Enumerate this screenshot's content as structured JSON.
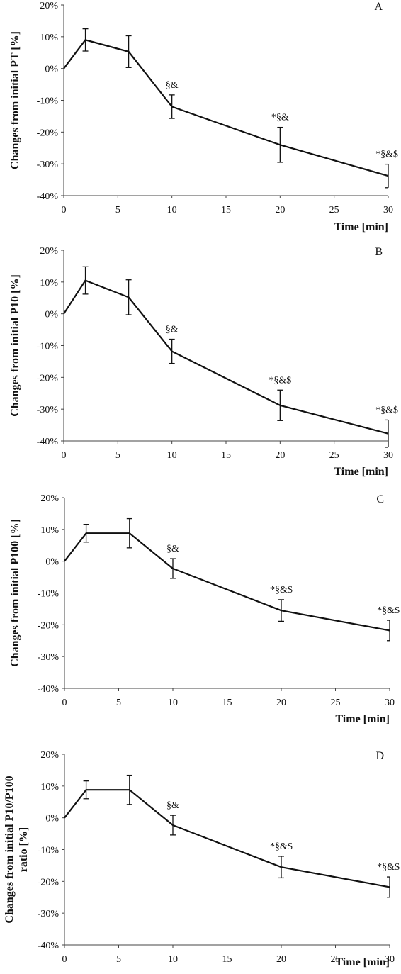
{
  "chart_data": [
    {
      "type": "line",
      "panel_label": "A",
      "xlabel": "Time [min]",
      "ylabel": [
        "Changes from initial PT [%]"
      ],
      "xlim": [
        0,
        30
      ],
      "ylim": [
        -40,
        20
      ],
      "xticks": [
        "0",
        "5",
        "10",
        "15",
        "20",
        "25",
        "30"
      ],
      "yticks": [
        "20%",
        "10%",
        "0%",
        "-10%",
        "-20%",
        "-30%",
        "-40%"
      ],
      "grid": false,
      "x": [
        0,
        2,
        6,
        10,
        20,
        30
      ],
      "y": [
        0,
        9,
        5.3,
        -12,
        -24,
        -33.8
      ],
      "error": [
        0,
        3.5,
        5,
        3.7,
        5.5,
        3.7
      ],
      "annotations": [
        "",
        "",
        "",
        "§&",
        "*§&",
        "*§&$"
      ]
    },
    {
      "type": "line",
      "panel_label": "B",
      "xlabel": "Time [min]",
      "ylabel": [
        "Changes from initial P10 [%]"
      ],
      "xlim": [
        0,
        30
      ],
      "ylim": [
        -40,
        20
      ],
      "xticks": [
        "0",
        "5",
        "10",
        "15",
        "20",
        "25",
        "30"
      ],
      "yticks": [
        "20%",
        "10%",
        "0%",
        "-10%",
        "-20%",
        "-30%",
        "-40%"
      ],
      "grid": false,
      "x": [
        0,
        2,
        6,
        10,
        20,
        30
      ],
      "y": [
        0,
        10.5,
        5.2,
        -11.8,
        -28.8,
        -37.7
      ],
      "error": [
        0,
        4.3,
        5.5,
        3.8,
        4.8,
        4.3
      ],
      "annotations": [
        "",
        "",
        "",
        "§&",
        "*§&$",
        "*§&$"
      ]
    },
    {
      "type": "line",
      "panel_label": "C",
      "xlabel": "Time [min]",
      "ylabel": [
        "Changes from initial P100 [%]"
      ],
      "xlim": [
        0,
        30
      ],
      "ylim": [
        -40,
        20
      ],
      "xticks": [
        "0",
        "5",
        "10",
        "15",
        "20",
        "25",
        "30"
      ],
      "yticks": [
        "20%",
        "10%",
        "0%",
        "-10%",
        "-20%",
        "-30%",
        "-40%"
      ],
      "grid": false,
      "x": [
        0,
        2,
        6,
        10,
        20,
        30
      ],
      "y": [
        0,
        8.8,
        8.8,
        -2.3,
        -15.5,
        -21.8
      ],
      "error": [
        0,
        2.8,
        4.6,
        3.1,
        3.4,
        3.2
      ],
      "annotations": [
        "",
        "",
        "",
        "§&",
        "*§&$",
        "*§&$"
      ]
    },
    {
      "type": "line",
      "panel_label": "D",
      "xlabel": "Time [min]",
      "ylabel": [
        "Changes from initial P10/P100",
        "ratio [%]"
      ],
      "xlim": [
        0,
        30
      ],
      "ylim": [
        -40,
        20
      ],
      "xticks": [
        "0",
        "5",
        "10",
        "15",
        "20",
        "25",
        "30"
      ],
      "yticks": [
        "20%",
        "10%",
        "0%",
        "-10%",
        "-20%",
        "-30%",
        "-40%"
      ],
      "grid": false,
      "x": [
        0,
        2,
        6,
        10,
        20,
        30
      ],
      "y": [
        0,
        8.8,
        8.8,
        -2.3,
        -15.5,
        -21.8
      ],
      "error": [
        0,
        2.8,
        4.6,
        3.1,
        3.4,
        3.2
      ],
      "annotations": [
        "",
        "",
        "",
        "§&",
        "*§&$",
        "*§&$"
      ]
    }
  ]
}
